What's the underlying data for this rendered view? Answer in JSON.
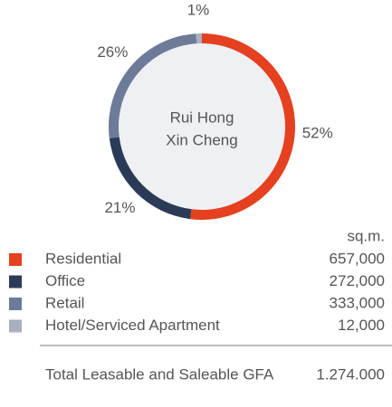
{
  "chart_data": {
    "type": "donut",
    "center_label": [
      "Rui Hong",
      "Xin Cheng"
    ],
    "categories": [
      "Residential",
      "Office",
      "Retail",
      "Hotel/Serviced Apartment"
    ],
    "values": [
      52,
      21,
      26,
      1
    ],
    "value_labels": [
      "52%",
      "21%",
      "26%",
      "1%"
    ],
    "colors": [
      "#e5401f",
      "#2b3a57",
      "#6d7b99",
      "#a8afbf"
    ]
  },
  "table": {
    "unit": "sq.m.",
    "areas": [
      "657,000",
      "272,000",
      "333,000",
      "12,000"
    ],
    "total_label": "Total Leasable and Saleable GFA",
    "total_value": "1.274.000"
  }
}
